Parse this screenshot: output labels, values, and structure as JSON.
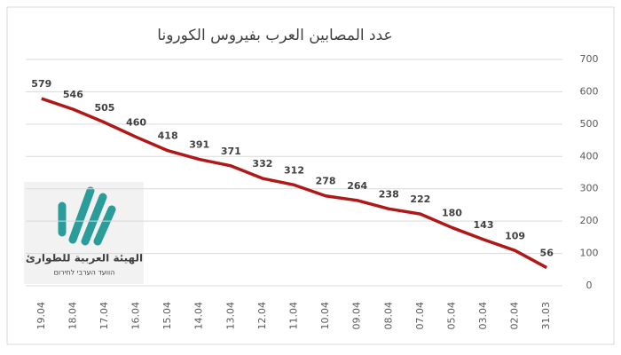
{
  "chart_data": {
    "type": "line",
    "title": "عدد المصابين العرب بفيروس الكورونا",
    "categories": [
      "19.04",
      "18.04",
      "17.04",
      "16.04",
      "15.04",
      "14.04",
      "13.04",
      "12.04",
      "11.04",
      "10.04",
      "09.04",
      "08.04",
      "07.04",
      "05.04",
      "03.04",
      "02.04",
      "31.03"
    ],
    "values": [
      579,
      546,
      505,
      460,
      418,
      391,
      371,
      332,
      312,
      278,
      264,
      238,
      222,
      180,
      143,
      109,
      56
    ],
    "color": "#b01818",
    "ylim": [
      0,
      700
    ],
    "yticks": [
      0,
      100,
      200,
      300,
      400,
      500,
      600,
      700
    ],
    "grid": true,
    "y_axis_side": "right"
  },
  "logo": {
    "title": "الهيئة العربية للطوارئ",
    "subtitle": "הוועד הערבי לחירום"
  }
}
